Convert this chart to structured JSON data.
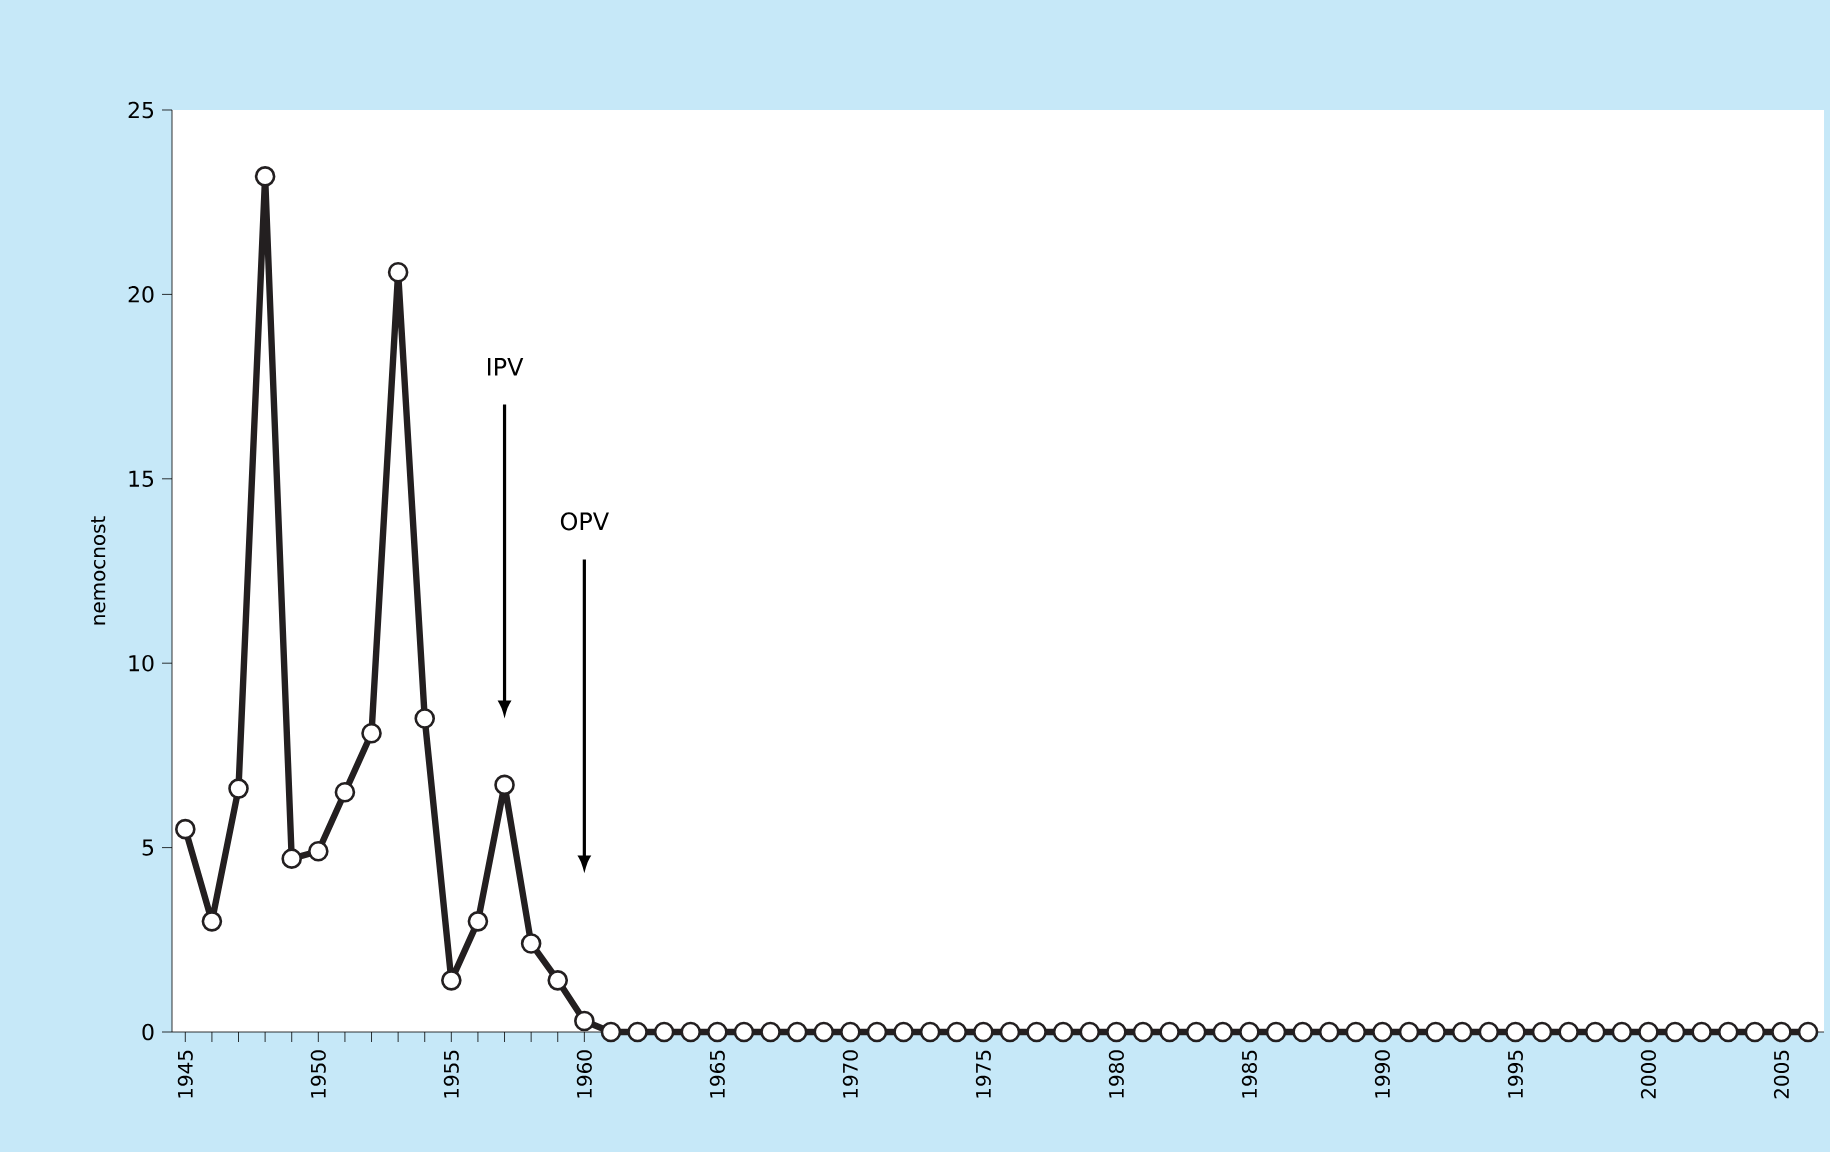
{
  "chart_data": {
    "type": "line",
    "ylabel": "nemocnost",
    "x": [
      1945,
      1946,
      1947,
      1948,
      1949,
      1950,
      1951,
      1952,
      1953,
      1954,
      1955,
      1956,
      1957,
      1958,
      1959,
      1960,
      1961,
      1962,
      1963,
      1964,
      1965,
      1966,
      1967,
      1968,
      1969,
      1970,
      1971,
      1972,
      1973,
      1974,
      1975,
      1976,
      1977,
      1978,
      1979,
      1980,
      1981,
      1982,
      1983,
      1984,
      1985,
      1986,
      1987,
      1988,
      1989,
      1990,
      1991,
      1992,
      1993,
      1994,
      1995,
      1996,
      1997,
      1998,
      1999,
      2000,
      2001,
      2002,
      2003,
      2004,
      2005,
      2006
    ],
    "series": [
      {
        "color": "#231f20",
        "values": [
          5.5,
          3.0,
          6.6,
          23.2,
          4.7,
          4.9,
          6.5,
          8.1,
          20.6,
          8.5,
          1.4,
          3.0,
          6.7,
          2.4,
          1.4,
          0.3,
          0,
          0,
          0,
          0,
          0,
          0,
          0,
          0,
          0,
          0,
          0,
          0,
          0,
          0,
          0,
          0,
          0,
          0,
          0,
          0,
          0,
          0,
          0,
          0,
          0,
          0,
          0,
          0,
          0,
          0,
          0,
          0,
          0,
          0,
          0,
          0,
          0,
          0,
          0,
          0,
          0,
          0,
          0,
          0,
          0,
          0
        ]
      }
    ],
    "xlim": [
      1944.5,
      2006.6
    ],
    "xticks": [
      1945,
      1950,
      1955,
      1960,
      1965,
      1970,
      1975,
      1980,
      1985,
      1990,
      1995,
      2000,
      2005
    ],
    "ylim": [
      0,
      25
    ],
    "yticks": [
      0,
      5,
      10,
      15,
      20,
      25
    ],
    "marker": "circle",
    "line_style": "solid",
    "grid": false,
    "annotations": [
      "IPV",
      "OPV"
    ]
  }
}
